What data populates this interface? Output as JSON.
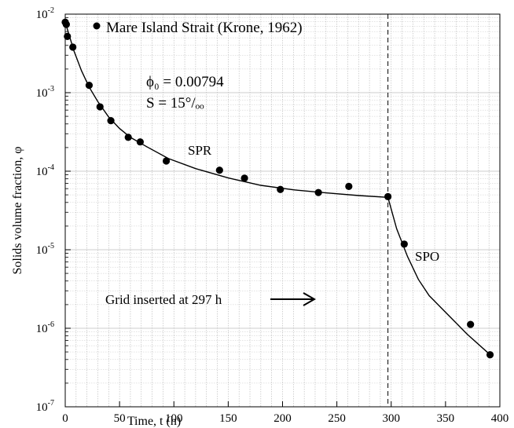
{
  "chart_data": {
    "type": "scatter",
    "xlabel": "Time, t (h)",
    "ylabel": "Solids volume fraction, φ",
    "xlim": [
      0,
      400
    ],
    "ylim": [
      1e-07,
      0.01
    ],
    "yscale": "log",
    "x_ticks": [
      "0",
      "50",
      "100",
      "150",
      "200",
      "250",
      "300",
      "350",
      "400"
    ],
    "y_ticks": [
      {
        "mantissa": "10",
        "exp": "-7"
      },
      {
        "mantissa": "10",
        "exp": "-6"
      },
      {
        "mantissa": "10",
        "exp": "-5"
      },
      {
        "mantissa": "10",
        "exp": "-4"
      },
      {
        "mantissa": "10",
        "exp": "-3"
      },
      {
        "mantissa": "10",
        "exp": "-2"
      }
    ],
    "grid": true,
    "legend": {
      "position": "top-left",
      "label": "Mare Island Strait (Krone, 1962)"
    },
    "series": [
      {
        "name": "Mare Island Strait (Krone, 1962)",
        "kind": "points",
        "color": "#000000",
        "x": [
          0,
          1,
          2,
          7,
          22,
          32,
          42,
          58,
          69,
          93,
          142,
          165,
          198,
          233,
          261,
          297,
          312,
          373,
          391
        ],
        "y": [
          0.0079,
          0.0074,
          0.0052,
          0.0038,
          0.00124,
          0.00066,
          0.00044,
          0.00027,
          0.000236,
          0.000135,
          0.000103,
          8.15e-05,
          5.85e-05,
          5.35e-05,
          6.4e-05,
          4.75e-05,
          1.18e-05,
          1.12e-06,
          4.6e-07
        ]
      },
      {
        "name": "",
        "kind": "line",
        "color": "#000000",
        "x": [
          0,
          3,
          8,
          15,
          22,
          30,
          40,
          50,
          60,
          75,
          95,
          120,
          150,
          180,
          210,
          240,
          270,
          297,
          305,
          315,
          325,
          335,
          350,
          370,
          391
        ],
        "y": [
          0.0079,
          0.0058,
          0.0034,
          0.0019,
          0.00118,
          0.00077,
          0.00049,
          0.00035,
          0.00027,
          0.000205,
          0.000145,
          0.000108,
          8.2e-05,
          6.6e-05,
          5.8e-05,
          5.3e-05,
          4.9e-05,
          4.65e-05,
          1.85e-05,
          8.2e-06,
          4.2e-06,
          2.6e-06,
          1.6e-06,
          8.4e-07,
          4.6e-07
        ]
      }
    ],
    "annotations": {
      "phi0": "ϕ₀ = 0.00794",
      "salinity": "S = 15°/ₒₒ",
      "spr": "SPR",
      "spo": "SPO",
      "grid_inserted": "Grid inserted at 297 h",
      "grid_inserted_time": 297
    }
  }
}
